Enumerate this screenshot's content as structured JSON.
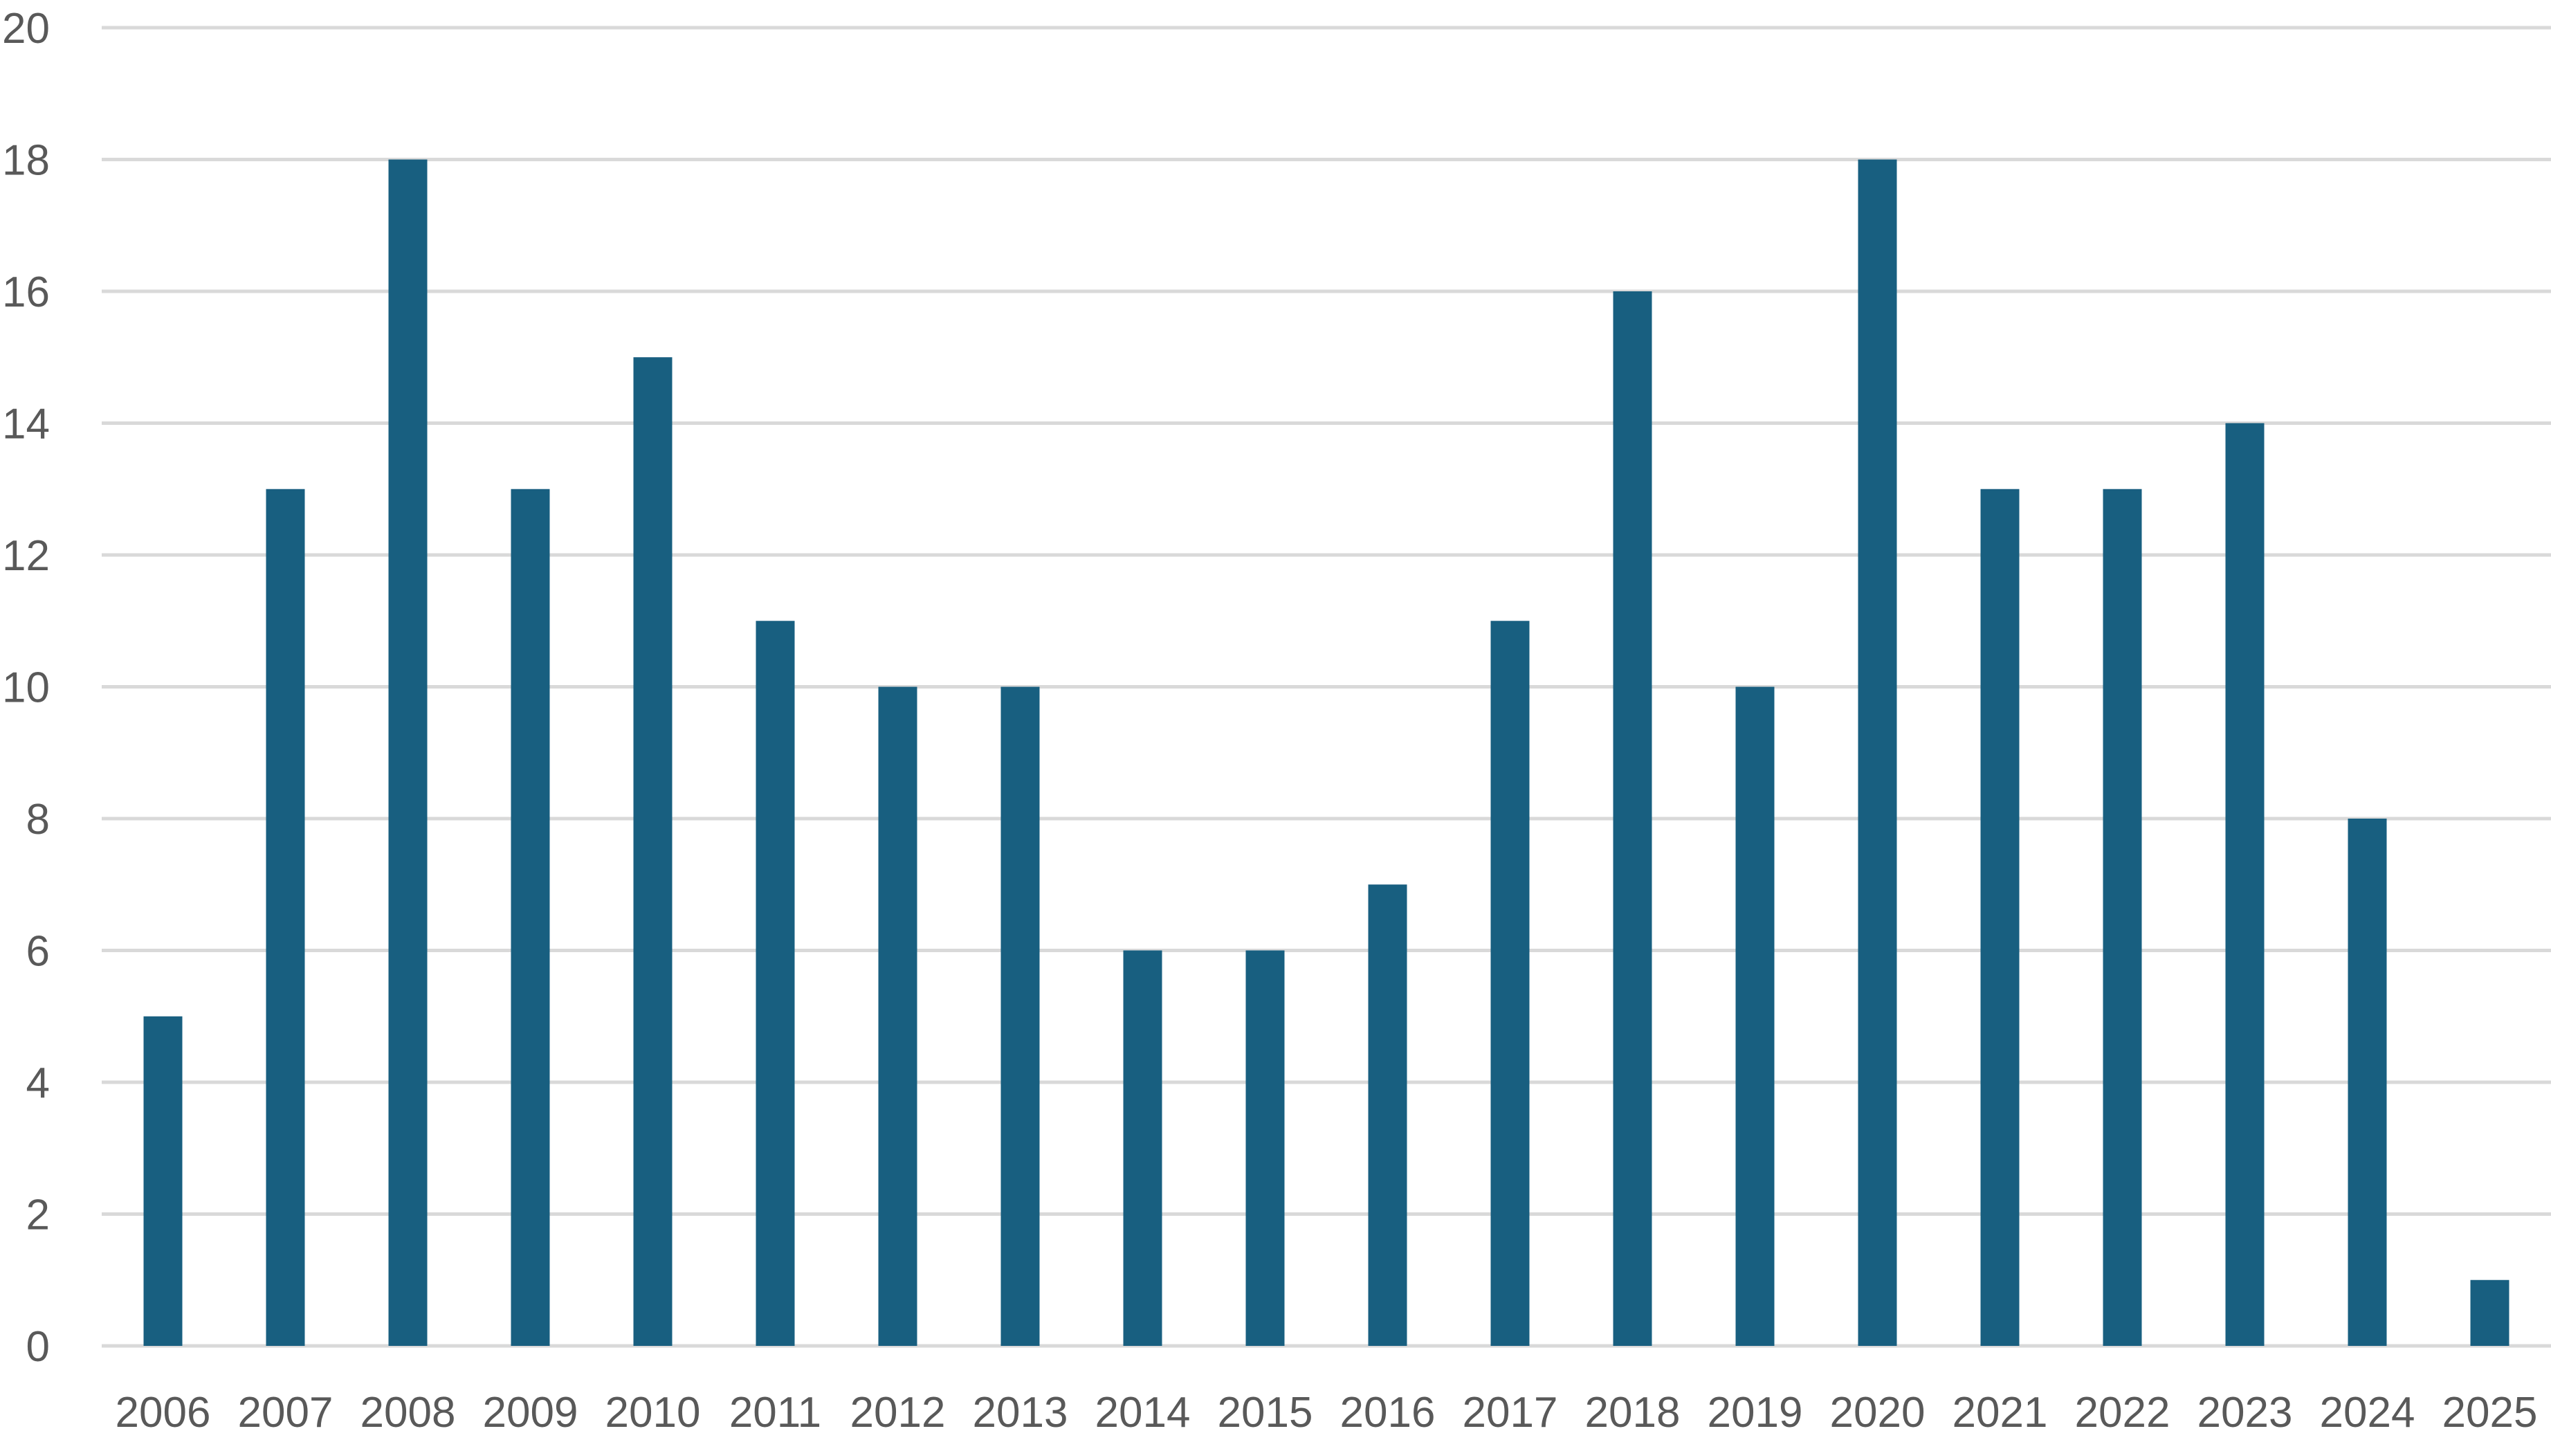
{
  "chart_data": {
    "type": "bar",
    "title": "",
    "xlabel": "",
    "ylabel": "",
    "categories": [
      "2006",
      "2007",
      "2008",
      "2009",
      "2010",
      "2011",
      "2012",
      "2013",
      "2014",
      "2015",
      "2016",
      "2017",
      "2018",
      "2019",
      "2020",
      "2021",
      "2022",
      "2023",
      "2024",
      "2025"
    ],
    "values": [
      5,
      13,
      18,
      13,
      15,
      11,
      10,
      10,
      6,
      6,
      7,
      11,
      16,
      10,
      18,
      13,
      13,
      14,
      8,
      1
    ],
    "ylim": [
      0,
      20
    ],
    "yticks": [
      "0",
      "2",
      "4",
      "6",
      "8",
      "10",
      "12",
      "14",
      "16",
      "18",
      "20"
    ],
    "grid": true,
    "legend": "none",
    "bar_color": "#185f80",
    "grid_color": "#d9d9d9",
    "label_color": "#595959"
  }
}
